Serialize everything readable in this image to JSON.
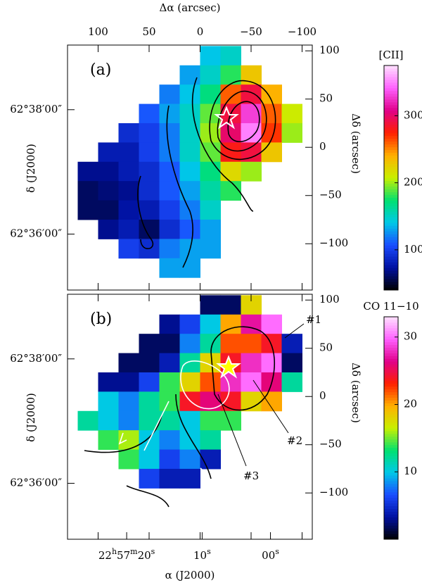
{
  "chart_data": [
    {
      "type": "heatmap",
      "panel_label": "(a)",
      "xlabel": "Δα (arcsec)",
      "ylabel": "Δδ (arcsec)",
      "left_label": "δ (J2000)",
      "colorbar_label": "[CII]",
      "xtick_labels": true,
      "xlim": [
        130,
        -110
      ],
      "ylim": [
        -148,
        106
      ],
      "xticks": [
        100,
        50,
        0,
        {
          "value": -50,
          "label": "−50"
        },
        {
          "value": -100,
          "label": "−100"
        }
      ],
      "yticks": [
        100,
        50,
        0,
        {
          "value": -50,
          "label": "−50"
        },
        {
          "value": -100,
          "label": "−100"
        }
      ],
      "dec_ticks": [
        {
          "value": 39,
          "label": "62°38′00″"
        },
        {
          "value": -90,
          "label": "62°36′00″"
        }
      ],
      "clim": [
        40,
        375
      ],
      "cticks": [
        100,
        200,
        300
      ],
      "colormap": [
        "#000000",
        "#0010a0",
        "#1a4cff",
        "#00c8e8",
        "#00e070",
        "#c8f000",
        "#ffb000",
        "#ff2000",
        "#e0008a",
        "#ff60ff",
        "#ffe0ff"
      ],
      "x": [
        110,
        90,
        70,
        50,
        30,
        10,
        -10,
        -30,
        -50,
        -70,
        -90
      ],
      "y": [
        95,
        75,
        55,
        35,
        15,
        -5,
        -25,
        -45,
        -65,
        -85,
        -105,
        -125
      ],
      "values": [
        [
          null,
          null,
          null,
          null,
          null,
          null,
          140,
          150,
          null,
          null,
          null
        ],
        [
          null,
          null,
          null,
          null,
          null,
          130,
          150,
          180,
          230,
          null,
          null
        ],
        [
          null,
          null,
          null,
          null,
          120,
          140,
          170,
          260,
          290,
          240,
          null
        ],
        [
          null,
          null,
          null,
          110,
          130,
          150,
          190,
          290,
          330,
          260,
          210
        ],
        [
          null,
          null,
          90,
          100,
          120,
          150,
          200,
          300,
          350,
          270,
          200
        ],
        [
          null,
          80,
          80,
          100,
          120,
          150,
          190,
          280,
          290,
          230,
          null
        ],
        [
          70,
          70,
          80,
          90,
          110,
          140,
          170,
          220,
          200,
          null,
          null
        ],
        [
          60,
          65,
          70,
          90,
          110,
          130,
          160,
          180,
          null,
          null,
          null
        ],
        [
          60,
          60,
          75,
          80,
          100,
          120,
          150,
          null,
          null,
          null,
          null
        ],
        [
          null,
          70,
          80,
          60,
          90,
          110,
          130,
          null,
          null,
          null,
          null
        ],
        [
          null,
          null,
          100,
          90,
          120,
          130,
          130,
          null,
          null,
          null,
          null
        ],
        [
          null,
          null,
          null,
          null,
          130,
          130,
          null,
          null,
          null,
          null,
          null
        ]
      ]
    },
    {
      "type": "heatmap",
      "panel_label": "(b)",
      "xlabel": "α (J2000)",
      "ylabel": "Δδ (arcsec)",
      "left_label": "δ (J2000)",
      "colorbar_label": "CO 11−10",
      "xtick_labels": false,
      "xlim": [
        130,
        -110
      ],
      "ylim": [
        -148,
        106
      ],
      "xticks": [
        100,
        50,
        0,
        {
          "value": -50,
          "label": "−50"
        },
        {
          "value": -100,
          "label": "−100"
        }
      ],
      "yticks": [
        100,
        50,
        0,
        {
          "value": -50,
          "label": "−50"
        },
        {
          "value": -100,
          "label": "−100"
        }
      ],
      "dec_ticks": [
        {
          "value": 39,
          "label": "62°38′00″"
        },
        {
          "value": -90,
          "label": "62°36′00″"
        }
      ],
      "ra_ticks": [
        {
          "value": 72,
          "parts": [
            "22",
            "h",
            "57",
            "m",
            "20",
            "s"
          ]
        },
        {
          "value": -2,
          "parts": [
            "10",
            "s"
          ]
        },
        {
          "value": -69,
          "parts": [
            "00",
            "s"
          ]
        }
      ],
      "annotations": [
        "#1",
        "#2",
        "#3"
      ],
      "clim": [
        0,
        33
      ],
      "cticks": [
        10,
        20,
        30
      ],
      "colormap": [
        "#000000",
        "#0010a0",
        "#1a4cff",
        "#00c8e8",
        "#00e070",
        "#c8f000",
        "#ffb000",
        "#ff2000",
        "#e0008a",
        "#ff60ff",
        "#ffe0ff"
      ],
      "x": [
        110,
        90,
        70,
        50,
        30,
        10,
        -10,
        -30,
        -50,
        -70,
        -90
      ],
      "y": [
        95,
        75,
        55,
        35,
        15,
        -5,
        -25,
        -45,
        -65,
        -85,
        -105,
        -125
      ],
      "values": [
        [
          null,
          null,
          null,
          null,
          null,
          null,
          2,
          2,
          18,
          null,
          null
        ],
        [
          null,
          null,
          null,
          null,
          3,
          6,
          10,
          20,
          27,
          30,
          null
        ],
        [
          null,
          null,
          null,
          2,
          2,
          8,
          12,
          22,
          22,
          24,
          4
        ],
        [
          null,
          null,
          2,
          2,
          4,
          12,
          18,
          24,
          28,
          30,
          2
        ],
        [
          null,
          3,
          3,
          6,
          14,
          18,
          22,
          28,
          30,
          26,
          12
        ],
        [
          null,
          10,
          8,
          12,
          14,
          24,
          26,
          24,
          18,
          20,
          null
        ],
        [
          12,
          10,
          8,
          12,
          12,
          10,
          14,
          14,
          null,
          null,
          null
        ],
        [
          null,
          14,
          16,
          10,
          8,
          10,
          12,
          null,
          null,
          null,
          null
        ],
        [
          null,
          null,
          14,
          10,
          6,
          8,
          4,
          null,
          null,
          null,
          null
        ],
        [
          null,
          null,
          null,
          6,
          4,
          4,
          null,
          null,
          null,
          null,
          null
        ],
        [
          null,
          null,
          null,
          null,
          null,
          null,
          null,
          null,
          null,
          null,
          null
        ],
        [
          null,
          null,
          null,
          null,
          null,
          null,
          null,
          null,
          null,
          null,
          null
        ]
      ]
    }
  ]
}
